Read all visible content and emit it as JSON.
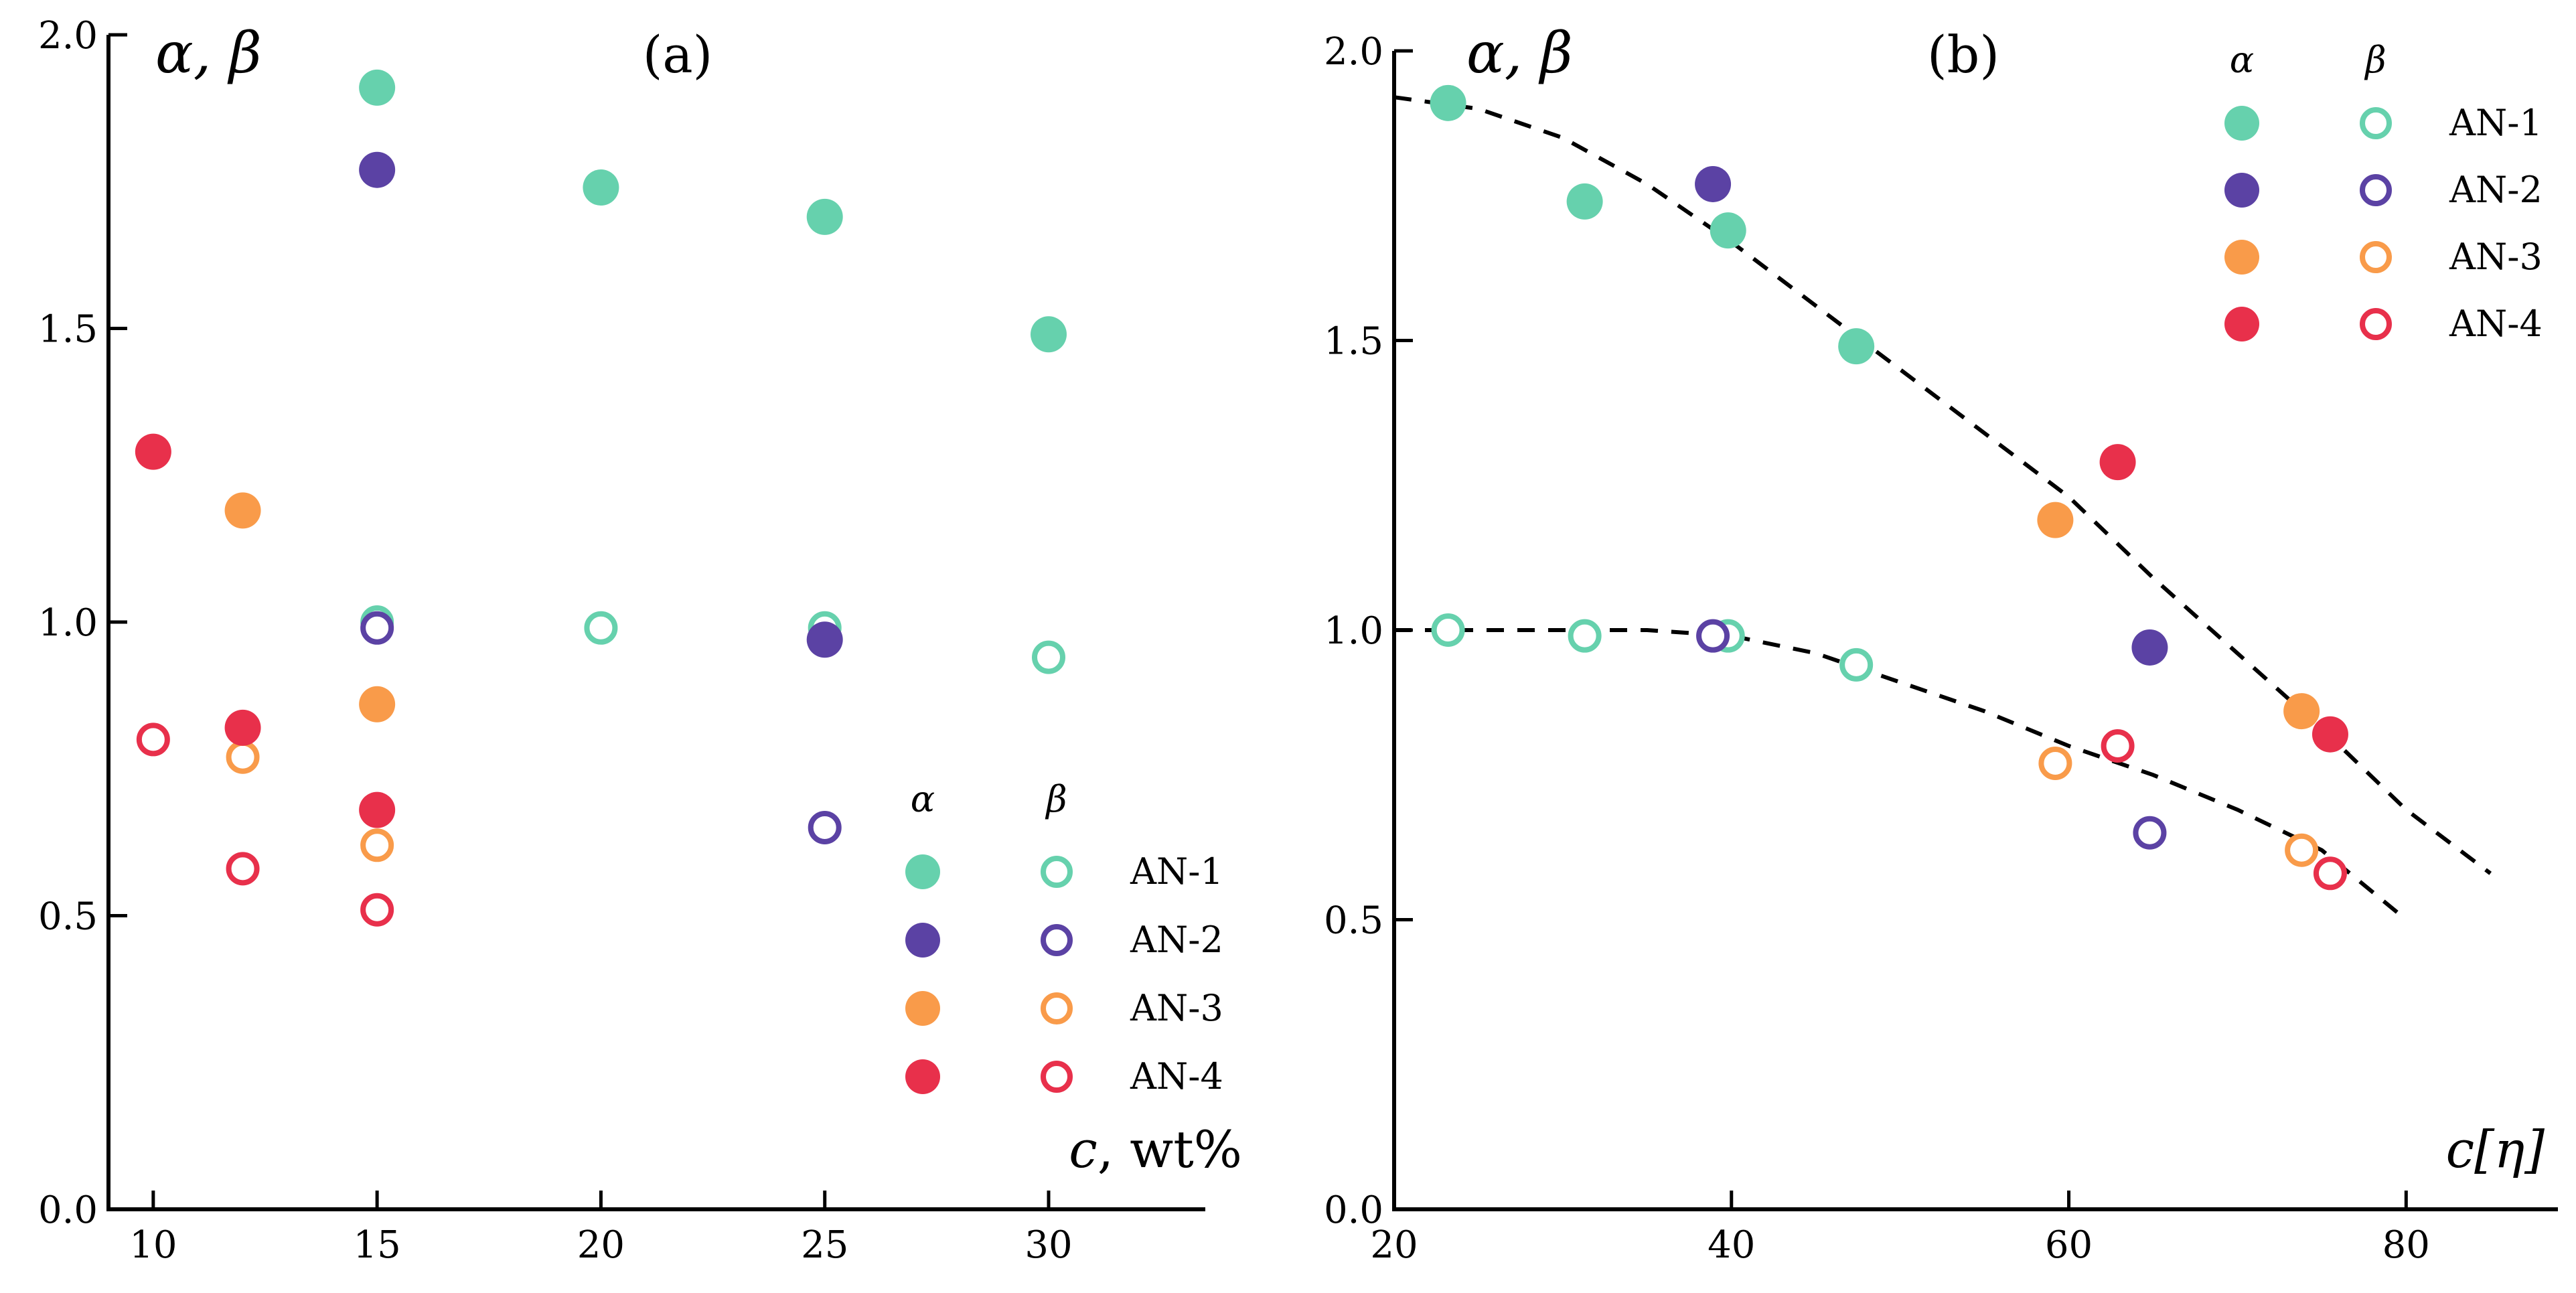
{
  "series_styles": [
    {
      "name": "AN-1",
      "color": "#66d1ad"
    },
    {
      "name": "AN-2",
      "color": "#5b42a4"
    },
    {
      "name": "AN-3",
      "color": "#f99b4a"
    },
    {
      "name": "AN-4",
      "color": "#e8304b"
    }
  ],
  "chart_data": [
    {
      "type": "scatter",
      "panel_label": "(a)",
      "ylabel": "α, β",
      "xlabel_italic": "c",
      "xlabel_rest": ", wt%",
      "xlim": [
        9.0,
        33.5
      ],
      "ylim": [
        0.0,
        2.0
      ],
      "xticks": [
        10,
        15,
        20,
        25,
        30
      ],
      "yticks": [
        0.0,
        0.5,
        1.0,
        1.5,
        2.0
      ],
      "xtick_labels": [
        "10",
        "15",
        "20",
        "25",
        "30"
      ],
      "ytick_labels": [
        "0.0",
        "0.5",
        "1.0",
        "1.5",
        "2.0"
      ],
      "legend": {
        "alpha_header": "α",
        "beta_header": "β",
        "placement": "lower-right"
      },
      "series": [
        {
          "name": "AN-1",
          "alpha": [
            [
              15,
              1.91
            ],
            [
              20,
              1.74
            ],
            [
              25,
              1.69
            ],
            [
              30,
              1.49
            ]
          ],
          "beta": [
            [
              15,
              1.0
            ],
            [
              20,
              0.99
            ],
            [
              25,
              0.99
            ],
            [
              30,
              0.94
            ]
          ]
        },
        {
          "name": "AN-2",
          "alpha": [
            [
              15,
              1.77
            ],
            [
              25,
              0.97
            ]
          ],
          "beta": [
            [
              15,
              0.99
            ],
            [
              25,
              0.65
            ]
          ]
        },
        {
          "name": "AN-3",
          "alpha": [
            [
              12,
              1.19
            ],
            [
              15,
              0.86
            ]
          ],
          "beta": [
            [
              12,
              0.77
            ],
            [
              15,
              0.62
            ]
          ]
        },
        {
          "name": "AN-4",
          "alpha": [
            [
              10,
              1.29
            ],
            [
              12,
              0.82
            ],
            [
              15,
              0.68
            ]
          ],
          "beta": [
            [
              10,
              0.8
            ],
            [
              12,
              0.58
            ],
            [
              15,
              0.51
            ]
          ]
        }
      ]
    },
    {
      "type": "scatter",
      "panel_label": "(b)",
      "ylabel": "α, β",
      "xlabel_italic": "c[η]",
      "xlabel_rest": "",
      "xlim": [
        20,
        89
      ],
      "ylim": [
        0.0,
        2.0
      ],
      "xticks": [
        20,
        40,
        60,
        80
      ],
      "yticks": [
        0.0,
        0.5,
        1.0,
        1.5,
        2.0
      ],
      "xtick_labels": [
        "20",
        "40",
        "60",
        "80"
      ],
      "ytick_labels": [
        "0.0",
        "0.5",
        "1.0",
        "1.5",
        "2.0"
      ],
      "legend": {
        "alpha_header": "α",
        "beta_header": "β",
        "placement": "top-right"
      },
      "series": [
        {
          "name": "AN-1",
          "alpha": [
            [
              23.2,
              1.91
            ],
            [
              31.3,
              1.74
            ],
            [
              39.8,
              1.69
            ],
            [
              47.4,
              1.49
            ]
          ],
          "beta": [
            [
              23.2,
              1.0
            ],
            [
              31.3,
              0.99
            ],
            [
              39.8,
              0.99
            ],
            [
              47.4,
              0.94
            ]
          ]
        },
        {
          "name": "AN-2",
          "alpha": [
            [
              38.9,
              1.77
            ],
            [
              64.8,
              0.97
            ]
          ],
          "beta": [
            [
              38.9,
              0.99
            ],
            [
              64.8,
              0.65
            ]
          ]
        },
        {
          "name": "AN-3",
          "alpha": [
            [
              59.2,
              1.19
            ],
            [
              73.8,
              0.86
            ]
          ],
          "beta": [
            [
              59.2,
              0.77
            ],
            [
              73.8,
              0.62
            ]
          ]
        },
        {
          "name": "AN-4",
          "alpha": [
            [
              62.9,
              1.29
            ],
            [
              75.5,
              0.82
            ]
          ],
          "beta": [
            [
              62.9,
              0.8
            ],
            [
              75.5,
              0.58
            ]
          ]
        }
      ],
      "fit_curves": [
        {
          "name": "alpha-fit",
          "points": [
            [
              20,
              1.92
            ],
            [
              25,
              1.9
            ],
            [
              30,
              1.85
            ],
            [
              35,
              1.77
            ],
            [
              40,
              1.67
            ],
            [
              45,
              1.56
            ],
            [
              50,
              1.45
            ],
            [
              55,
              1.34
            ],
            [
              60,
              1.23
            ],
            [
              65,
              1.09
            ],
            [
              70,
              0.96
            ],
            [
              75,
              0.83
            ],
            [
              80,
              0.69
            ],
            [
              85,
              0.58
            ]
          ]
        },
        {
          "name": "beta-fit",
          "points": [
            [
              20,
              1.0
            ],
            [
              25,
              1.0
            ],
            [
              30,
              1.0
            ],
            [
              35,
              1.0
            ],
            [
              40,
              0.99
            ],
            [
              45,
              0.96
            ],
            [
              50,
              0.91
            ],
            [
              55,
              0.86
            ],
            [
              60,
              0.8
            ],
            [
              65,
              0.75
            ],
            [
              70,
              0.69
            ],
            [
              75,
              0.62
            ],
            [
              80,
              0.5
            ]
          ]
        }
      ]
    }
  ]
}
